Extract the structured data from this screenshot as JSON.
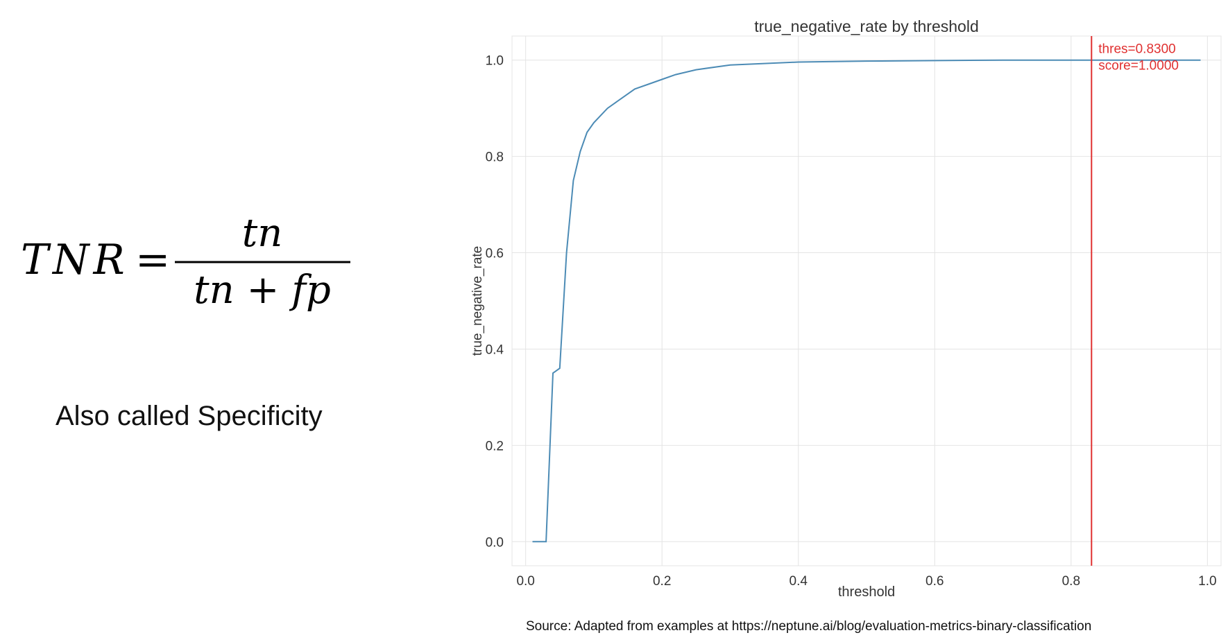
{
  "formula": {
    "lhs": "TNR",
    "equals": "=",
    "numerator": "tn",
    "denominator": "tn + fp"
  },
  "subtitle": "Also called Specificity",
  "source": {
    "label": "Source",
    "text": ": Adapted from examples at https://neptune.ai/blog/evaluation-metrics-binary-classification"
  },
  "chart_data": {
    "type": "line",
    "title": "true_negative_rate by threshold",
    "xlabel": "threshold",
    "ylabel": "true_negative_rate",
    "xlim": [
      -0.02,
      1.02
    ],
    "ylim": [
      -0.05,
      1.05
    ],
    "grid": true,
    "x_ticks": [
      0.0,
      0.2,
      0.4,
      0.6,
      0.8,
      1.0
    ],
    "x_tick_labels": [
      "0.0",
      "0.2",
      "0.4",
      "0.6",
      "0.8",
      "1.0"
    ],
    "y_ticks": [
      0.0,
      0.2,
      0.4,
      0.6,
      0.8,
      1.0
    ],
    "y_tick_labels": [
      "0.0",
      "0.2",
      "0.4",
      "0.6",
      "0.8",
      "1.0"
    ],
    "series_color": "#4c8bb5",
    "x": [
      0.01,
      0.03,
      0.04,
      0.05,
      0.06,
      0.07,
      0.08,
      0.09,
      0.1,
      0.12,
      0.14,
      0.16,
      0.18,
      0.2,
      0.22,
      0.25,
      0.3,
      0.35,
      0.4,
      0.5,
      0.6,
      0.7,
      0.8,
      0.83,
      0.9,
      0.99
    ],
    "y": [
      0.0,
      0.0,
      0.35,
      0.36,
      0.6,
      0.75,
      0.81,
      0.85,
      0.87,
      0.9,
      0.92,
      0.94,
      0.95,
      0.96,
      0.97,
      0.98,
      0.99,
      0.993,
      0.996,
      0.998,
      0.999,
      1.0,
      1.0,
      1.0,
      1.0,
      1.0
    ],
    "annotation": {
      "x": 0.83,
      "color": "#e03030",
      "line1": "thres=0.8300",
      "line2": "score=1.0000"
    }
  }
}
